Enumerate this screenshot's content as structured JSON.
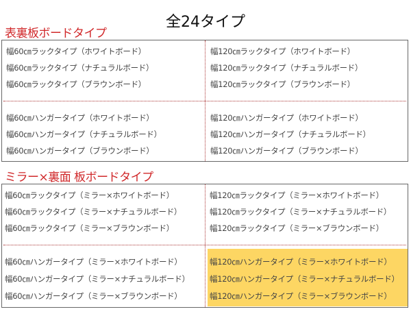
{
  "title": "全24タイプ",
  "colors": {
    "heading": "#d0282a",
    "highlight": "#fdd663",
    "divider": "#aa3333"
  },
  "sections": [
    {
      "heading": "表裏板ボードタイプ",
      "quadrants": [
        {
          "items": [
            "幅60㎝ラックタイプ（ホワイトボード）",
            "幅60㎝ラックタイプ（ナチュラルボード）",
            "幅60㎝ラックタイプ（ブラウンボード）"
          ]
        },
        {
          "items": [
            "幅120㎝ラックタイプ（ホワイトボード）",
            "幅120㎝ラックタイプ（ナチュラルボード）",
            "幅120㎝ラックタイプ（ブラウンボード）"
          ]
        },
        {
          "items": [
            "幅60㎝ハンガータイプ（ホワイトボード）",
            "幅60㎝ハンガータイプ（ナチュラルボード）",
            "幅60㎝ハンガータイプ（ブラウンボード）"
          ]
        },
        {
          "items": [
            "幅120㎝ハンガータイプ（ホワイトボード）",
            "幅120㎝ハンガータイプ（ナチュラルボード）",
            "幅120㎝ハンガータイプ（ブラウンボード）"
          ]
        }
      ]
    },
    {
      "heading": "ミラー×裏面 板ボードタイプ",
      "quadrants": [
        {
          "items": [
            "幅60㎝ラックタイプ（ミラー×ホワイトボード）",
            "幅60㎝ラックタイプ（ミラー×ナチュラルボード）",
            "幅60㎝ラックタイプ（ミラー×ブラウンボード）"
          ]
        },
        {
          "items": [
            "幅120㎝ラックタイプ（ミラー×ホワイトボード）",
            "幅120㎝ラックタイプ（ミラー×ナチュラルボード）",
            "幅120㎝ラックタイプ（ミラー×ブラウンボード）"
          ]
        },
        {
          "items": [
            "幅60㎝ハンガータイプ（ミラー×ホワイトボード）",
            "幅60㎝ハンガータイプ（ミラー×ナチュラルボード）",
            "幅60㎝ハンガータイプ（ミラー×ブラウンボード）"
          ]
        },
        {
          "items": [
            "幅120㎝ハンガータイプ（ミラー×ホワイトボード）",
            "幅120㎝ハンガータイプ（ミラー×ナチュラルボード）",
            "幅120㎝ハンガータイプ（ミラー×ブラウンボード）"
          ],
          "highlighted": true
        }
      ]
    }
  ]
}
